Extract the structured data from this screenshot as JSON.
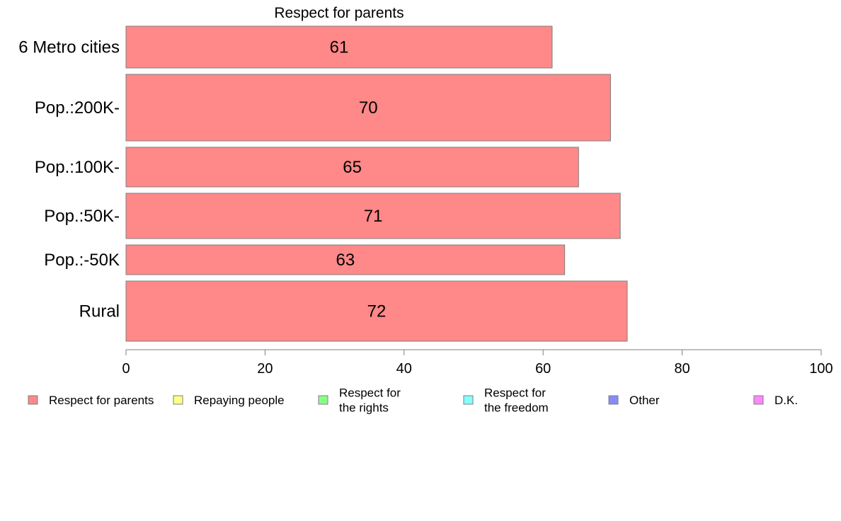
{
  "chart_data": {
    "type": "bar",
    "orientation": "horizontal",
    "title": "Respect for parents",
    "categories": [
      "6 Metro cities",
      "Pop.:200K-",
      "Pop.:100K-",
      "Pop.:50K-",
      "Pop.:-50K",
      "Rural"
    ],
    "series": [
      {
        "name": "Respect for parents",
        "color": "#ff8888",
        "values": [
          61.3,
          69.7,
          65.1,
          71.1,
          63.1,
          72.1
        ],
        "labels": [
          "61",
          "70",
          "65",
          "71",
          "63",
          "72"
        ]
      }
    ],
    "xlim": [
      0,
      100
    ],
    "xticks": [
      0,
      20,
      40,
      60,
      80,
      100
    ],
    "xtick_labels": [
      "0",
      "20",
      "40",
      "60",
      "80",
      "100"
    ],
    "grid": false,
    "legend_position": "bottom",
    "legend": [
      {
        "lines": [
          "Respect for parents"
        ],
        "color": "#ff8888"
      },
      {
        "lines": [
          "Repaying people"
        ],
        "color": "#ffff88"
      },
      {
        "lines": [
          "Respect for",
          "the rights"
        ],
        "color": "#88ff88"
      },
      {
        "lines": [
          "Respect for",
          "the freedom"
        ],
        "color": "#88ffff"
      },
      {
        "lines": [
          "Other"
        ],
        "color": "#8888ff"
      },
      {
        "lines": [
          "D.K."
        ],
        "color": "#ff88ff"
      }
    ]
  }
}
